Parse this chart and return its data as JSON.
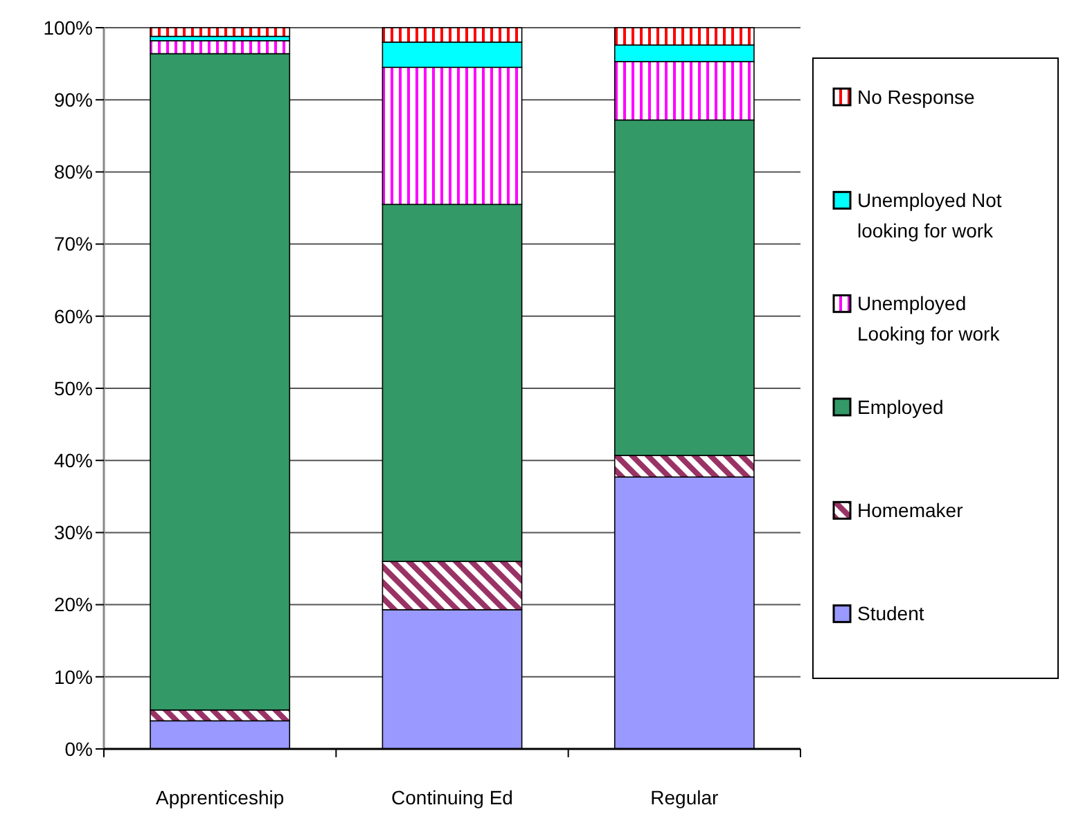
{
  "chart_data": {
    "type": "bar",
    "stacked": true,
    "categories": [
      "Apprenticeship",
      "Continuing Ed",
      "Regular"
    ],
    "series": [
      {
        "name": "Student",
        "color": "#9999ff",
        "values": [
          3.9,
          19.3,
          37.7
        ]
      },
      {
        "name": "Homemaker",
        "color": "#993366",
        "values": [
          1.5,
          6.7,
          3.0
        ]
      },
      {
        "name": "Employed",
        "color": "#339966",
        "values": [
          91.0,
          49.5,
          46.5
        ]
      },
      {
        "name": "Unemployed Looking for work",
        "color": "#ff00ff",
        "values": [
          1.8,
          19.0,
          8.1
        ]
      },
      {
        "name": "Unemployed Not looking for work",
        "color": "#00ffff",
        "values": [
          0.6,
          3.5,
          2.3
        ]
      },
      {
        "name": "No Response",
        "color": "#ff0000",
        "values": [
          1.2,
          2.0,
          2.4
        ]
      }
    ],
    "ylim": [
      0,
      100
    ],
    "yticks": [
      {
        "value": 0,
        "label": "0%"
      },
      {
        "value": 10,
        "label": "10%"
      },
      {
        "value": 20,
        "label": "20%"
      },
      {
        "value": 30,
        "label": "30%"
      },
      {
        "value": 40,
        "label": "40%"
      },
      {
        "value": 50,
        "label": "50%"
      },
      {
        "value": 60,
        "label": "60%"
      },
      {
        "value": 70,
        "label": "70%"
      },
      {
        "value": 80,
        "label": "80%"
      },
      {
        "value": 90,
        "label": "90%"
      },
      {
        "value": 100,
        "label": "100%"
      }
    ],
    "grid": "y",
    "legend": "right"
  }
}
